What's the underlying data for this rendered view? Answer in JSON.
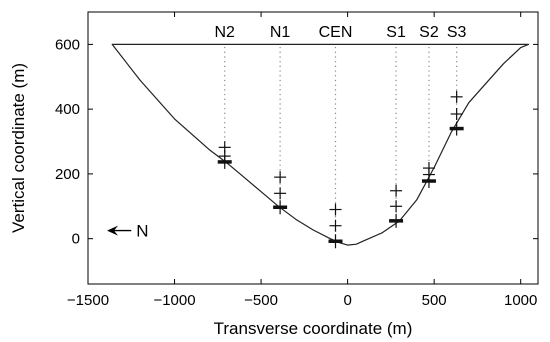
{
  "chart_data": {
    "type": "line",
    "xlabel": "Transverse coordinate (m)",
    "ylabel": "Vertical coordinate (m)",
    "xlim": [
      -1500,
      1100
    ],
    "ylim": [
      -140,
      700
    ],
    "xticks": [
      -1500,
      -1000,
      -500,
      0,
      500,
      1000
    ],
    "yticks": [
      0,
      200,
      400,
      600
    ],
    "grid": false,
    "legend": "none",
    "series": [
      {
        "x": [
          -1360,
          -1200,
          -1000,
          -800,
          -700,
          -600,
          -500,
          -400,
          -300,
          -200,
          -100,
          -50,
          0,
          50,
          100,
          200,
          300,
          400,
          500,
          600,
          700,
          800,
          900,
          1000,
          1045
        ],
        "y": [
          600,
          490,
          370,
          275,
          235,
          190,
          145,
          100,
          60,
          27,
          0,
          -12,
          -20,
          -17,
          -5,
          18,
          55,
          120,
          220,
          330,
          420,
          480,
          540,
          590,
          600
        ]
      }
    ],
    "boreholes": [
      {
        "label": "N2",
        "x": -710,
        "bed": 237,
        "sensors": [
          282,
          255
        ]
      },
      {
        "label": "N1",
        "x": -390,
        "bed": 97,
        "sensors": [
          190,
          140
        ]
      },
      {
        "label": "CEN",
        "x": -70,
        "bed": -8,
        "sensors": [
          90,
          40
        ]
      },
      {
        "label": "S1",
        "x": 280,
        "bed": 55,
        "sensors": [
          148,
          100
        ]
      },
      {
        "label": "S2",
        "x": 470,
        "bed": 178,
        "sensors": [
          218,
          198
        ]
      },
      {
        "label": "S3",
        "x": 630,
        "bed": 340,
        "sensors": [
          438,
          385
        ]
      }
    ],
    "annotation": {
      "label": "N",
      "arrow": "left",
      "x_from": -1250,
      "x_to": -1390,
      "y": 25
    },
    "colors": {
      "line": "#222222",
      "dotted": "#888888",
      "marker": "#111111"
    }
  }
}
